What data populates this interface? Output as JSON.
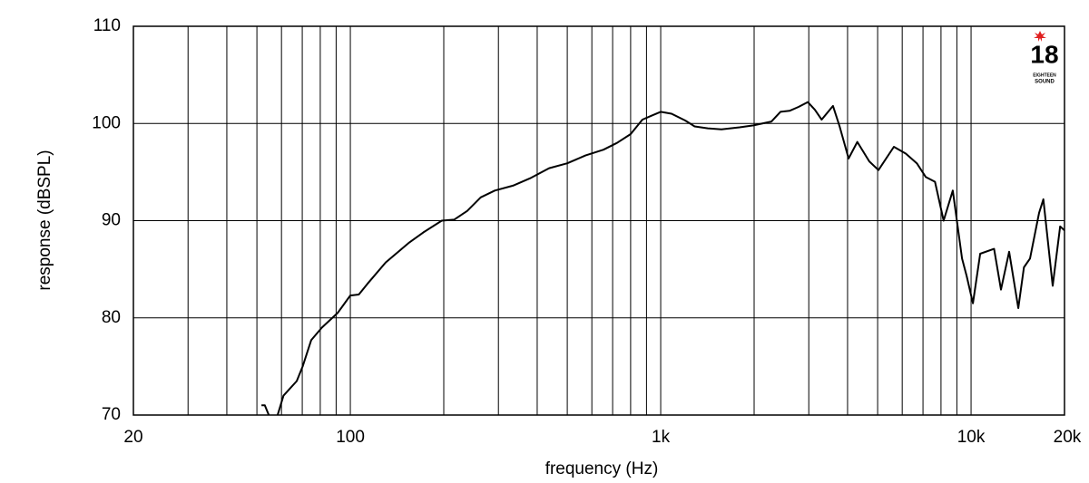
{
  "chart_data": {
    "type": "line",
    "xlabel": "frequency (Hz)",
    "ylabel": "response (dBSPL)",
    "xscale": "log",
    "grid": true,
    "xlim": [
      20,
      20000
    ],
    "ylim": [
      70,
      110
    ],
    "xticks": [
      20,
      100,
      {
        "value": 1000,
        "label": "1k"
      },
      {
        "value": 10000,
        "label": "10k"
      },
      {
        "value": 20000,
        "label": "20k"
      }
    ],
    "xminor": [
      30,
      40,
      50,
      60,
      70,
      80,
      90,
      200,
      300,
      400,
      500,
      600,
      700,
      800,
      900,
      2000,
      3000,
      4000,
      5000,
      6000,
      7000,
      8000,
      9000
    ],
    "yticks": [
      70,
      80,
      90,
      100,
      110
    ],
    "x": [
      51.7,
      53,
      54.6,
      56,
      58.3,
      60.9,
      67.2,
      70.2,
      74.8,
      81,
      91,
      100,
      106.5,
      113.5,
      130,
      154,
      172,
      197,
      216,
      238,
      263,
      292,
      334,
      382,
      437,
      500,
      572,
      654,
      723,
      800,
      873,
      934,
      1000,
      1084,
      1200,
      1286,
      1418,
      1570,
      1796,
      1988,
      2274,
      2432,
      2600,
      2780,
      2980,
      3140,
      3300,
      3590,
      3770,
      4030,
      4300,
      4700,
      5030,
      5640,
      6160,
      6690,
      7140,
      7650,
      8160,
      8730,
      9350,
      9680,
      10140,
      10700,
      11860,
      12480,
      13260,
      14200,
      14800,
      15490,
      16560,
      17100,
      18320,
      19370,
      20000
    ],
    "series": [
      {
        "name": "response",
        "color": "#000000",
        "values": [
          71.0,
          71.0,
          70.0,
          null,
          70.0,
          72.0,
          73.5,
          75.0,
          77.7,
          79.0,
          80.5,
          82.3,
          82.4,
          83.5,
          85.7,
          87.7,
          88.8,
          90.0,
          90.1,
          91.0,
          92.4,
          93.1,
          93.6,
          94.4,
          95.4,
          95.9,
          96.7,
          97.3,
          98.0,
          98.9,
          100.4,
          100.8,
          101.2,
          101.0,
          100.3,
          99.7,
          99.5,
          99.4,
          99.6,
          99.8,
          100.2,
          101.2,
          101.3,
          101.7,
          102.2,
          101.4,
          100.4,
          101.8,
          99.7,
          96.4,
          98.1,
          96.1,
          95.2,
          97.6,
          96.9,
          95.9,
          94.5,
          94.0,
          90.0,
          93.1,
          86.1,
          84.3,
          81.5,
          86.6,
          87.1,
          82.9,
          86.8,
          81.0,
          85.2,
          86.1,
          90.8,
          92.2,
          83.3,
          89.4,
          89.0
        ]
      }
    ]
  },
  "logo": {
    "number": "18",
    "line1": "EIGHTEEN",
    "line2": "SOUND"
  }
}
